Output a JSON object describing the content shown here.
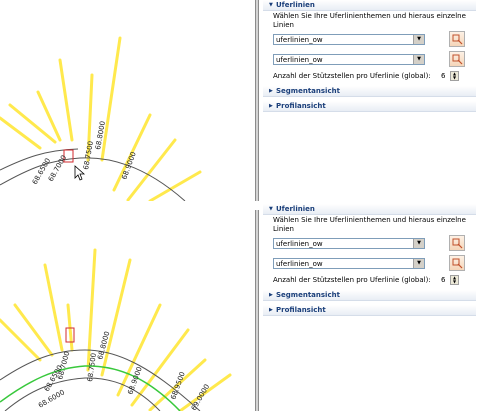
{
  "panels": [
    {
      "section_title": "Uferlinien",
      "description": "Wählen Sie Ihre Uferlinienthemen und hieraus einzelne Linien",
      "combo1_value": "uferlinien_ow",
      "combo2_value": "uferlinien_ow",
      "count_label": "Anzahl der Stützstellen pro Uferlinie (global):",
      "count_value": "6",
      "segment_title": "Segmentansicht",
      "profil_title": "Profilansicht"
    },
    {
      "section_title": "Uferlinien",
      "description": "Wählen Sie Ihre Uferlinienthemen und hieraus einzelne Linien",
      "combo1_value": "uferlinien_ow",
      "combo2_value": "uferlinien_ow",
      "count_label": "Anzahl der Stützstellen pro Uferlinie (global):",
      "count_value": "6",
      "segment_title": "Segmentansicht",
      "profil_title": "Profilansicht"
    }
  ],
  "maps": [
    {
      "labels": [
        "68.6500",
        "68.7000",
        "68.7500",
        "68.8000",
        "68.9000"
      ]
    },
    {
      "labels": [
        "68.6000",
        "68.6500",
        "68.7000",
        "68.7500",
        "68.8000",
        "68.9000",
        "68.9500",
        "69.0000"
      ]
    }
  ],
  "colors": {
    "section_line": "#ffe94d",
    "river_axis": "#555555",
    "bank_line": "#38c83c",
    "selection": "#d2282d"
  }
}
